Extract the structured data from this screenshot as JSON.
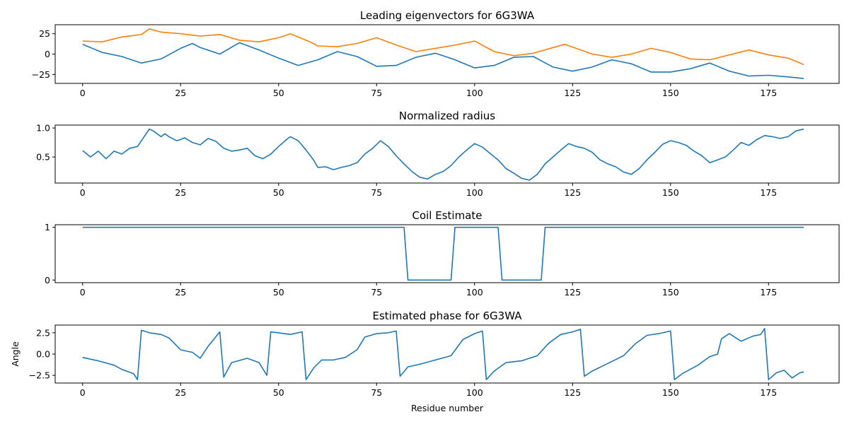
{
  "figure": {
    "xlabel": "Residue number"
  },
  "chart_data": [
    {
      "type": "line",
      "title": "Leading eigenvectors for 6G3WA",
      "xlabel": "",
      "ylabel": "",
      "xlim": [
        -7,
        193
      ],
      "ylim": [
        -36,
        36
      ],
      "xticks": [
        0,
        25,
        50,
        75,
        100,
        125,
        150,
        175
      ],
      "yticks": [
        -25,
        0,
        25
      ],
      "grid": false,
      "series": [
        {
          "color": "#1f77b4",
          "x": [
            0,
            5,
            10,
            15,
            20,
            25,
            28,
            30,
            35,
            40,
            45,
            50,
            55,
            60,
            65,
            70,
            75,
            80,
            85,
            90,
            95,
            100,
            105,
            110,
            115,
            120,
            125,
            130,
            135,
            140,
            145,
            150,
            155,
            160,
            165,
            170,
            175,
            180,
            184
          ],
          "y": [
            12,
            2,
            -3,
            -11,
            -6,
            7,
            13,
            8,
            0,
            14,
            5,
            -5,
            -14,
            -7,
            3,
            -3,
            -15,
            -14,
            -4,
            1,
            -7,
            -17,
            -14,
            -4,
            -3,
            -16,
            -21,
            -16,
            -7,
            -12,
            -22,
            -22,
            -18,
            -11,
            -21,
            -27,
            -26,
            -28,
            -30
          ]
        },
        {
          "color": "#ff7f0e",
          "x": [
            0,
            5,
            10,
            15,
            17,
            20,
            25,
            30,
            35,
            40,
            45,
            50,
            53,
            58,
            60,
            65,
            70,
            75,
            80,
            85,
            90,
            95,
            100,
            105,
            110,
            115,
            120,
            123,
            130,
            135,
            140,
            145,
            150,
            155,
            160,
            165,
            170,
            175,
            180,
            184
          ],
          "y": [
            16,
            15,
            21,
            24,
            31,
            27,
            25,
            22,
            24,
            17,
            15,
            20,
            25,
            15,
            10,
            9,
            13,
            20,
            11,
            3,
            7,
            11,
            16,
            3,
            -2,
            1,
            8,
            12,
            0,
            -4,
            0,
            7,
            2,
            -6,
            -7,
            -1,
            5,
            -1,
            -5,
            -13
          ]
        }
      ]
    },
    {
      "type": "line",
      "title": "Normalized radius",
      "xlabel": "",
      "ylabel": "",
      "xlim": [
        -7,
        193
      ],
      "ylim": [
        0.05,
        1.05
      ],
      "xticks": [
        0,
        25,
        50,
        75,
        100,
        125,
        150,
        175
      ],
      "yticks": [
        0.5,
        1.0
      ],
      "ytick_labels": [
        "0.5",
        "1.0"
      ],
      "grid": false,
      "series": [
        {
          "color": "#1f77b4",
          "x": [
            0,
            2,
            4,
            6,
            8,
            10,
            12,
            14,
            16,
            17,
            18,
            20,
            21,
            22,
            24,
            25,
            26,
            28,
            30,
            32,
            34,
            36,
            38,
            40,
            42,
            44,
            46,
            48,
            50,
            52,
            53,
            55,
            57,
            59,
            60,
            62,
            64,
            66,
            68,
            70,
            72,
            74,
            76,
            78,
            80,
            82,
            84,
            86,
            88,
            90,
            92,
            94,
            96,
            98,
            100,
            102,
            104,
            106,
            108,
            110,
            112,
            114,
            116,
            118,
            120,
            122,
            124,
            126,
            128,
            130,
            132,
            134,
            136,
            138,
            140,
            142,
            144,
            146,
            148,
            150,
            152,
            154,
            156,
            158,
            160,
            162,
            164,
            166,
            168,
            170,
            172,
            174,
            176,
            178,
            180,
            182,
            184
          ],
          "y": [
            0.61,
            0.5,
            0.6,
            0.47,
            0.6,
            0.55,
            0.65,
            0.68,
            0.88,
            0.98,
            0.95,
            0.85,
            0.9,
            0.85,
            0.78,
            0.8,
            0.83,
            0.75,
            0.71,
            0.82,
            0.77,
            0.65,
            0.6,
            0.62,
            0.65,
            0.52,
            0.47,
            0.55,
            0.68,
            0.8,
            0.85,
            0.78,
            0.62,
            0.44,
            0.32,
            0.33,
            0.28,
            0.32,
            0.35,
            0.4,
            0.55,
            0.65,
            0.78,
            0.68,
            0.52,
            0.38,
            0.25,
            0.15,
            0.12,
            0.2,
            0.25,
            0.35,
            0.5,
            0.62,
            0.73,
            0.67,
            0.56,
            0.45,
            0.3,
            0.22,
            0.13,
            0.1,
            0.2,
            0.38,
            0.5,
            0.62,
            0.73,
            0.68,
            0.65,
            0.58,
            0.45,
            0.38,
            0.33,
            0.24,
            0.2,
            0.3,
            0.45,
            0.58,
            0.72,
            0.78,
            0.75,
            0.7,
            0.6,
            0.52,
            0.4,
            0.45,
            0.5,
            0.62,
            0.75,
            0.7,
            0.8,
            0.87,
            0.85,
            0.82,
            0.85,
            0.95,
            0.98
          ]
        }
      ]
    },
    {
      "type": "line",
      "title": "Coil Estimate",
      "xlabel": "",
      "ylabel": "",
      "xlim": [
        -7,
        193
      ],
      "ylim": [
        -0.05,
        1.05
      ],
      "xticks": [
        0,
        25,
        50,
        75,
        100,
        125,
        150,
        175
      ],
      "yticks": [
        0,
        1
      ],
      "grid": false,
      "series": [
        {
          "color": "#1f77b4",
          "x": [
            0,
            82,
            83,
            94,
            95,
            106,
            107,
            117,
            118,
            184
          ],
          "y": [
            1,
            1,
            0,
            0,
            1,
            1,
            0,
            0,
            1,
            1
          ]
        }
      ]
    },
    {
      "type": "line",
      "title": "Estimated phase for 6G3WA",
      "xlabel": "Residue number",
      "ylabel": "Angle",
      "xlim": [
        -7,
        193
      ],
      "ylim": [
        -3.4,
        3.4
      ],
      "xticks": [
        0,
        25,
        50,
        75,
        100,
        125,
        150,
        175
      ],
      "yticks": [
        -2.5,
        0.0,
        2.5
      ],
      "ytick_labels": [
        "−2.5",
        "0.0",
        "2.5"
      ],
      "grid": false,
      "series": [
        {
          "color": "#1f77b4",
          "x": [
            0,
            4,
            8,
            10,
            13,
            14,
            15,
            17,
            20,
            22,
            25,
            28,
            30,
            32,
            35,
            36,
            38,
            42,
            45,
            47,
            48,
            50,
            53,
            56,
            57,
            59,
            61,
            64,
            67,
            70,
            72,
            75,
            78,
            80,
            81,
            83,
            86,
            90,
            94,
            97,
            100,
            102,
            103,
            105,
            108,
            112,
            116,
            119,
            122,
            125,
            127,
            128,
            130,
            134,
            138,
            141,
            144,
            147,
            150,
            151,
            153,
            157,
            160,
            162,
            163,
            165,
            168,
            171,
            173,
            174,
            175,
            177,
            179,
            181,
            183,
            184
          ],
          "y": [
            -0.4,
            -0.8,
            -1.3,
            -1.8,
            -2.3,
            -3.0,
            2.8,
            2.5,
            2.3,
            1.9,
            0.5,
            0.2,
            -0.5,
            0.9,
            2.6,
            -2.7,
            -1.0,
            -0.5,
            -1.0,
            -2.5,
            2.6,
            2.5,
            2.3,
            2.6,
            -3.0,
            -1.6,
            -0.7,
            -0.7,
            -0.4,
            0.5,
            2.0,
            2.4,
            2.5,
            2.7,
            -2.6,
            -1.5,
            -1.2,
            -0.7,
            -0.2,
            1.7,
            2.4,
            2.7,
            -3.0,
            -2.0,
            -1.0,
            -0.8,
            -0.2,
            1.3,
            2.3,
            2.6,
            2.9,
            -2.6,
            -2.0,
            -1.1,
            -0.2,
            1.2,
            2.2,
            2.4,
            2.7,
            -3.0,
            -2.3,
            -1.3,
            -0.3,
            0.0,
            1.8,
            2.4,
            1.5,
            2.1,
            2.3,
            3.0,
            -3.0,
            -2.2,
            -1.9,
            -2.8,
            -2.2,
            -2.1
          ]
        }
      ]
    }
  ]
}
